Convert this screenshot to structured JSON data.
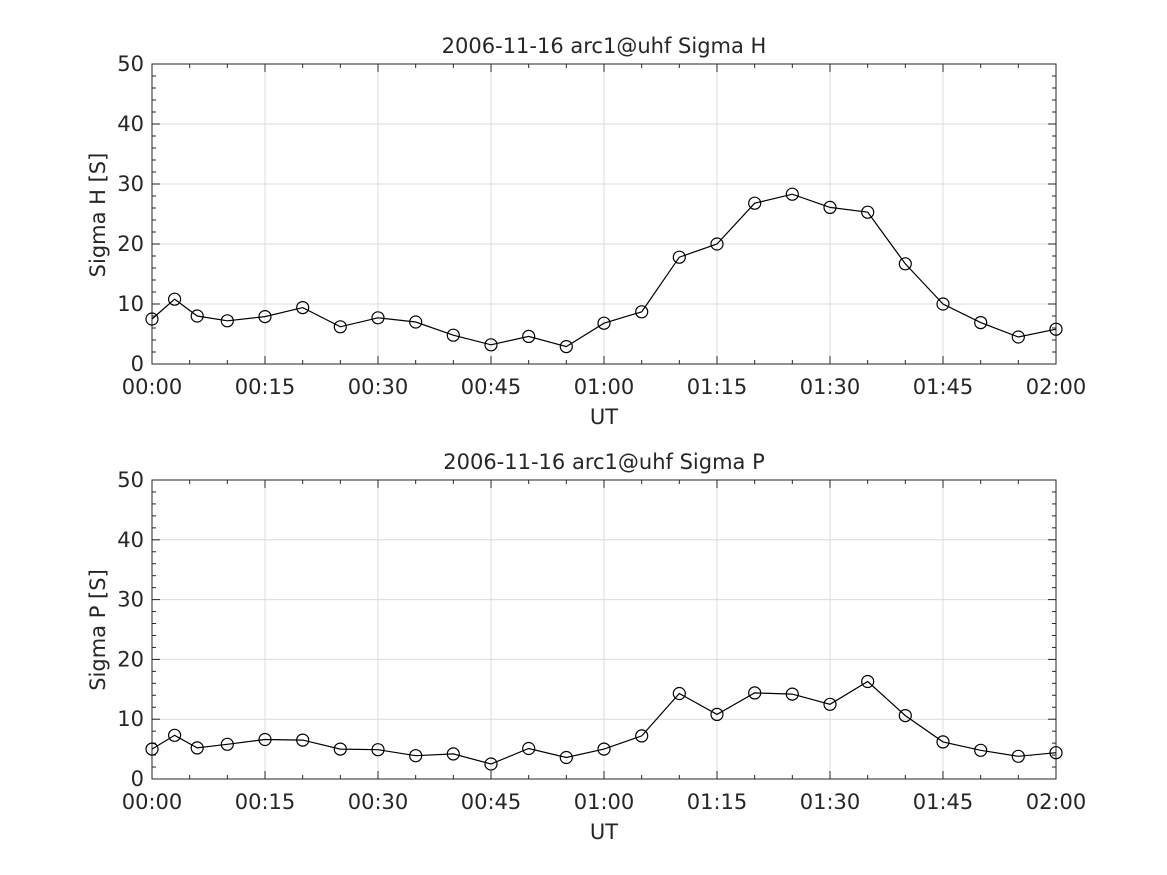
{
  "chart_data": [
    {
      "type": "line",
      "title": "2006-11-16  arc1@uhf Sigma H",
      "xlabel": "UT",
      "ylabel": "Sigma H [S]",
      "xlim": [
        "00:00",
        "02:00"
      ],
      "ylim": [
        0,
        50
      ],
      "xticks": [
        "00:00",
        "00:15",
        "00:30",
        "00:45",
        "01:00",
        "01:15",
        "01:30",
        "01:45",
        "02:00"
      ],
      "yticks": [
        0,
        10,
        20,
        30,
        40,
        50
      ],
      "grid": true,
      "marker": "open-circle",
      "line_color": "#000000",
      "series": [
        {
          "x": [
            "00:00",
            "00:03",
            "00:06",
            "00:10",
            "00:15",
            "00:20",
            "00:25",
            "00:30",
            "00:35",
            "00:40",
            "00:45",
            "00:50",
            "00:55",
            "01:00",
            "01:05",
            "01:10",
            "01:15",
            "01:20",
            "01:25",
            "01:30",
            "01:35",
            "01:40",
            "01:45",
            "01:50",
            "01:55",
            "02:00"
          ],
          "values": [
            7.5,
            10.8,
            8.0,
            7.2,
            7.9,
            9.4,
            6.2,
            7.7,
            7.0,
            4.8,
            3.2,
            4.6,
            2.9,
            6.8,
            8.7,
            17.8,
            20.0,
            26.8,
            28.3,
            26.1,
            25.3,
            16.7,
            10.0,
            6.9,
            4.5,
            5.8
          ]
        }
      ]
    },
    {
      "type": "line",
      "title": "2006-11-16  arc1@uhf Sigma P",
      "xlabel": "UT",
      "ylabel": "Sigma P [S]",
      "xlim": [
        "00:00",
        "02:00"
      ],
      "ylim": [
        0,
        50
      ],
      "xticks": [
        "00:00",
        "00:15",
        "00:30",
        "00:45",
        "01:00",
        "01:15",
        "01:30",
        "01:45",
        "02:00"
      ],
      "yticks": [
        0,
        10,
        20,
        30,
        40,
        50
      ],
      "grid": true,
      "marker": "open-circle",
      "line_color": "#000000",
      "series": [
        {
          "x": [
            "00:00",
            "00:03",
            "00:06",
            "00:10",
            "00:15",
            "00:20",
            "00:25",
            "00:30",
            "00:35",
            "00:40",
            "00:45",
            "00:50",
            "00:55",
            "01:00",
            "01:05",
            "01:10",
            "01:15",
            "01:20",
            "01:25",
            "01:30",
            "01:35",
            "01:40",
            "01:45",
            "01:50",
            "01:55",
            "02:00"
          ],
          "values": [
            5.0,
            7.3,
            5.2,
            5.8,
            6.6,
            6.5,
            5.0,
            4.9,
            3.9,
            4.2,
            2.5,
            5.1,
            3.6,
            5.0,
            7.2,
            14.3,
            10.8,
            14.4,
            14.2,
            12.5,
            16.3,
            10.6,
            6.2,
            4.8,
            3.8,
            4.4
          ]
        }
      ]
    }
  ]
}
